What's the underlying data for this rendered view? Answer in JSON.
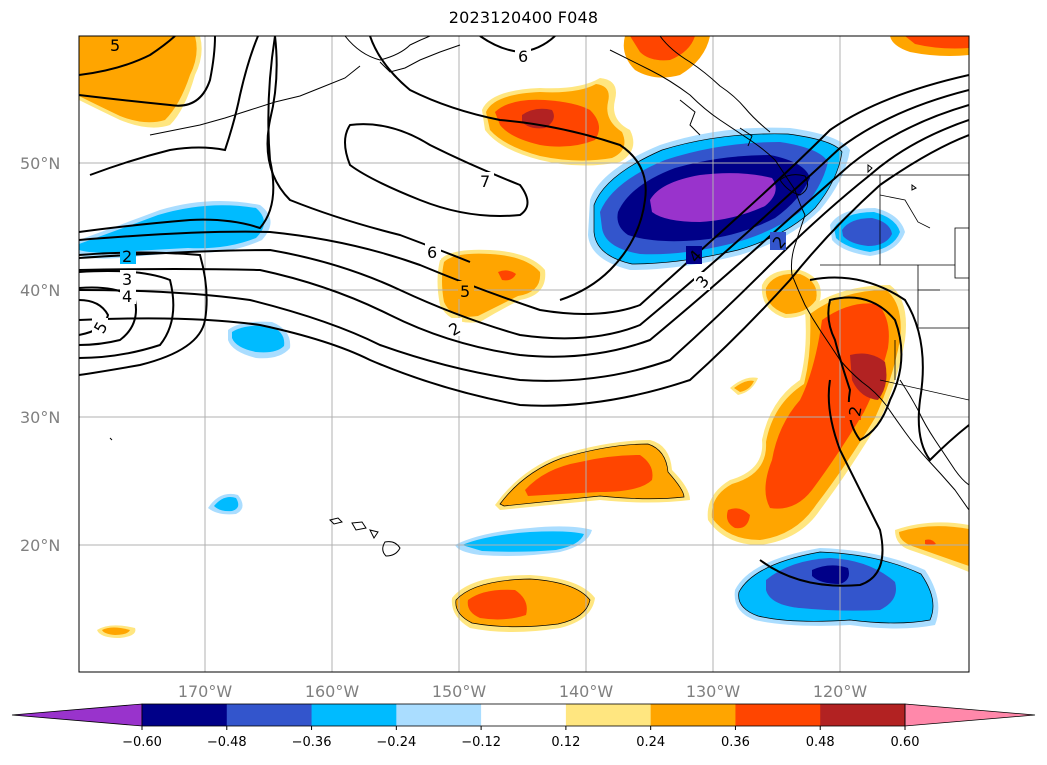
{
  "title": "2023120400 F048",
  "lat_labels": [
    "50°N",
    "40°N",
    "30°N",
    "20°N"
  ],
  "lon_labels": [
    "170°W",
    "160°W",
    "150°W",
    "140°W",
    "130°W",
    "120°W"
  ],
  "colorbar": {
    "ticks": [
      "−0.60",
      "−0.48",
      "−0.36",
      "−0.24",
      "−0.12",
      "0.12",
      "0.24",
      "0.36",
      "0.48",
      "0.60"
    ],
    "colors": [
      "#9933cc",
      "#000088",
      "#3355cc",
      "#00bbff",
      "#aaddff",
      "#ffffff",
      "#ffe680",
      "#ffa500",
      "#ff4500",
      "#b22222",
      "#ff88aa"
    ]
  },
  "contour_labels": [
    "5",
    "6",
    "7",
    "6",
    "5",
    "2",
    "3",
    "4",
    "5",
    "2",
    "4",
    "3",
    "2",
    "2"
  ]
}
